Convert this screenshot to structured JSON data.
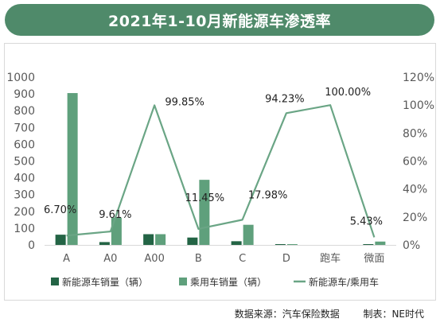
{
  "title": "2021年1-10月新能源车渗透率",
  "footer": {
    "source": "数据来源：汽车保险数据",
    "maker": "制表：NE时代"
  },
  "colors": {
    "banner": "#4f8a6a",
    "nev_bar": "#236445",
    "passenger_bar": "#5fa07c",
    "line": "#6aa585",
    "axis_text": "#595959"
  },
  "chart_data": {
    "type": "bar",
    "categories": [
      "A",
      "A0",
      "A00",
      "B",
      "C",
      "D",
      "跑车",
      "微面"
    ],
    "series": [
      {
        "name": "新能源车销量（辆）",
        "type": "bar",
        "axis": "left",
        "values": [
          61,
          17,
          64,
          44,
          22,
          2,
          0,
          1
        ]
      },
      {
        "name": "乘用车销量（辆）",
        "type": "bar",
        "axis": "left",
        "values": [
          905,
          163,
          64,
          388,
          120,
          3,
          0,
          20
        ]
      },
      {
        "name": "新能源车/乘用车",
        "type": "line",
        "axis": "right",
        "values": [
          6.7,
          9.61,
          99.85,
          11.45,
          17.98,
          94.23,
          100.0,
          5.43
        ],
        "labels": [
          "6.70%",
          "9.61%",
          "99.85%",
          "11.45%",
          "17.98%",
          "94.23%",
          "100.00%",
          "5.43%"
        ]
      }
    ],
    "y_left": {
      "ylim": [
        0,
        1000
      ],
      "ticks": [
        "0",
        "100",
        "200",
        "300",
        "400",
        "500",
        "600",
        "700",
        "800",
        "900",
        "1000"
      ]
    },
    "y_right": {
      "ylim": [
        0,
        120
      ],
      "ticks": [
        "0%",
        "20%",
        "40%",
        "60%",
        "80%",
        "100%",
        "120%"
      ]
    },
    "legend": {
      "position": "bottom",
      "entries": [
        "新能源车销量（辆）",
        "乘用车销量（辆）",
        "新能源车/乘用车"
      ]
    },
    "grid": false
  }
}
